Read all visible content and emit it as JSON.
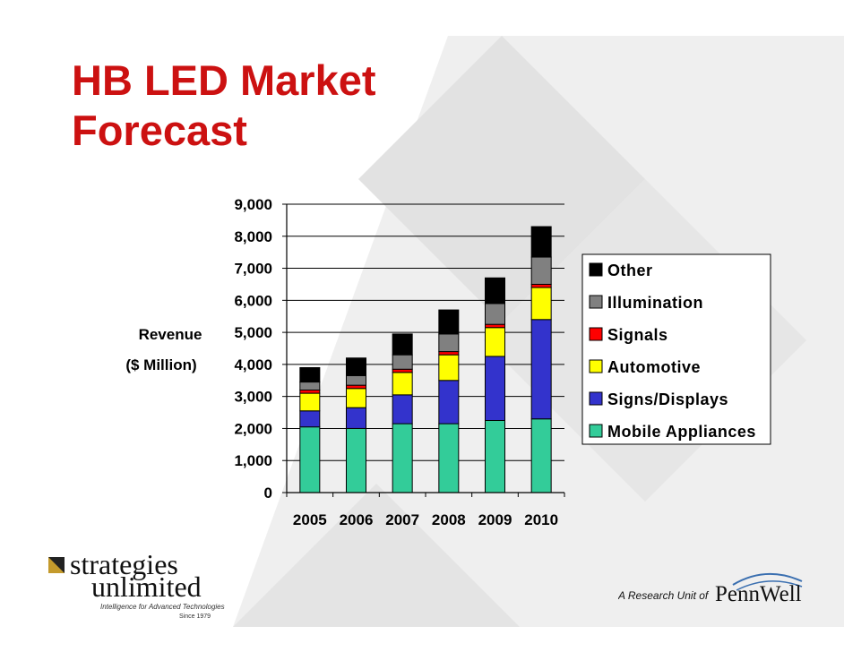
{
  "slide": {
    "title_line1": "HB LED Market",
    "title_line2": "Forecast"
  },
  "colors": {
    "title": "#cc1111",
    "Other": "#000000",
    "Illumination": "#808080",
    "Signals": "#ff0000",
    "Automotive": "#ffff00",
    "Signs/Displays": "#3333cc",
    "Mobile Appliances": "#33cc99"
  },
  "chart_data": {
    "type": "bar",
    "stacked": true,
    "categories": [
      "2005",
      "2006",
      "2007",
      "2008",
      "2009",
      "2010"
    ],
    "ylabel_line1": "Revenue",
    "ylabel_line2": "($ Million)",
    "ylim": [
      0,
      9000
    ],
    "yticks": [
      "0",
      "1,000",
      "2,000",
      "3,000",
      "4,000",
      "5,000",
      "6,000",
      "7,000",
      "8,000",
      "9,000"
    ],
    "grid": true,
    "legend_position": "right",
    "legend_order": [
      "Other",
      "Illumination",
      "Signals",
      "Automotive",
      "Signs/Displays",
      "Mobile Appliances"
    ],
    "series": [
      {
        "name": "Mobile Appliances",
        "values": [
          2050,
          2000,
          2150,
          2150,
          2250,
          2300
        ]
      },
      {
        "name": "Signs/Displays",
        "values": [
          500,
          650,
          900,
          1350,
          2000,
          3100
        ]
      },
      {
        "name": "Automotive",
        "values": [
          550,
          600,
          700,
          800,
          900,
          1000
        ]
      },
      {
        "name": "Signals",
        "values": [
          100,
          100,
          100,
          100,
          100,
          100
        ]
      },
      {
        "name": "Illumination",
        "values": [
          250,
          300,
          450,
          550,
          650,
          850
        ]
      },
      {
        "name": "Other",
        "values": [
          450,
          550,
          650,
          750,
          800,
          950
        ]
      }
    ]
  },
  "logos": {
    "left_word1": "strategies",
    "left_word2": "unlimited",
    "left_tagline": "Intelligence for Advanced Technologies",
    "left_since": "Since 1979",
    "right_prefix": "A Research Unit of",
    "right_brand": "PennWell"
  }
}
